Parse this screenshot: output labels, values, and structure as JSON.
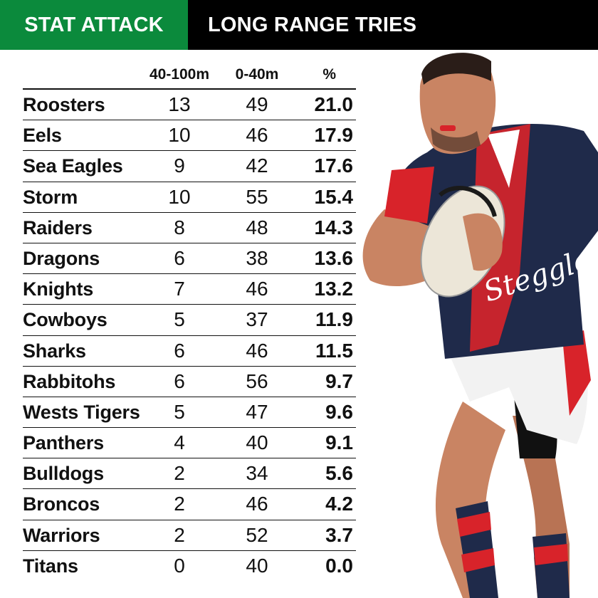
{
  "header": {
    "tag": "STAT ATTACK",
    "title": "LONG RANGE TRIES",
    "tag_color": "#0b8a3c",
    "bar_color": "#000000"
  },
  "photo": {
    "subject": "rugby-league-player-running-with-ball",
    "jersey_text": "Steggles",
    "jersey_colors": [
      "#1f2a4a",
      "#d8232a",
      "#ffffff"
    ]
  },
  "chart_data": {
    "type": "table",
    "columns": [
      "40-100m",
      "0-40m",
      "%"
    ],
    "rows": [
      {
        "team": "Roosters",
        "long": "13",
        "short": "49",
        "pct": "21.0"
      },
      {
        "team": "Eels",
        "long": "10",
        "short": "46",
        "pct": "17.9"
      },
      {
        "team": "Sea Eagles",
        "long": "9",
        "short": "42",
        "pct": "17.6"
      },
      {
        "team": "Storm",
        "long": "10",
        "short": "55",
        "pct": "15.4"
      },
      {
        "team": "Raiders",
        "long": "8",
        "short": "48",
        "pct": "14.3"
      },
      {
        "team": "Dragons",
        "long": "6",
        "short": "38",
        "pct": "13.6"
      },
      {
        "team": "Knights",
        "long": "7",
        "short": "46",
        "pct": "13.2"
      },
      {
        "team": "Cowboys",
        "long": "5",
        "short": "37",
        "pct": "11.9"
      },
      {
        "team": "Sharks",
        "long": "6",
        "short": "46",
        "pct": "11.5"
      },
      {
        "team": "Rabbitohs",
        "long": "6",
        "short": "56",
        "pct": "9.7"
      },
      {
        "team": "Wests Tigers",
        "long": "5",
        "short": "47",
        "pct": "9.6"
      },
      {
        "team": "Panthers",
        "long": "4",
        "short": "40",
        "pct": "9.1"
      },
      {
        "team": "Bulldogs",
        "long": "2",
        "short": "34",
        "pct": "5.6"
      },
      {
        "team": "Broncos",
        "long": "2",
        "short": "46",
        "pct": "4.2"
      },
      {
        "team": "Warriors",
        "long": "2",
        "short": "52",
        "pct": "3.7"
      },
      {
        "team": "Titans",
        "long": "0",
        "short": "40",
        "pct": "0.0"
      }
    ]
  }
}
